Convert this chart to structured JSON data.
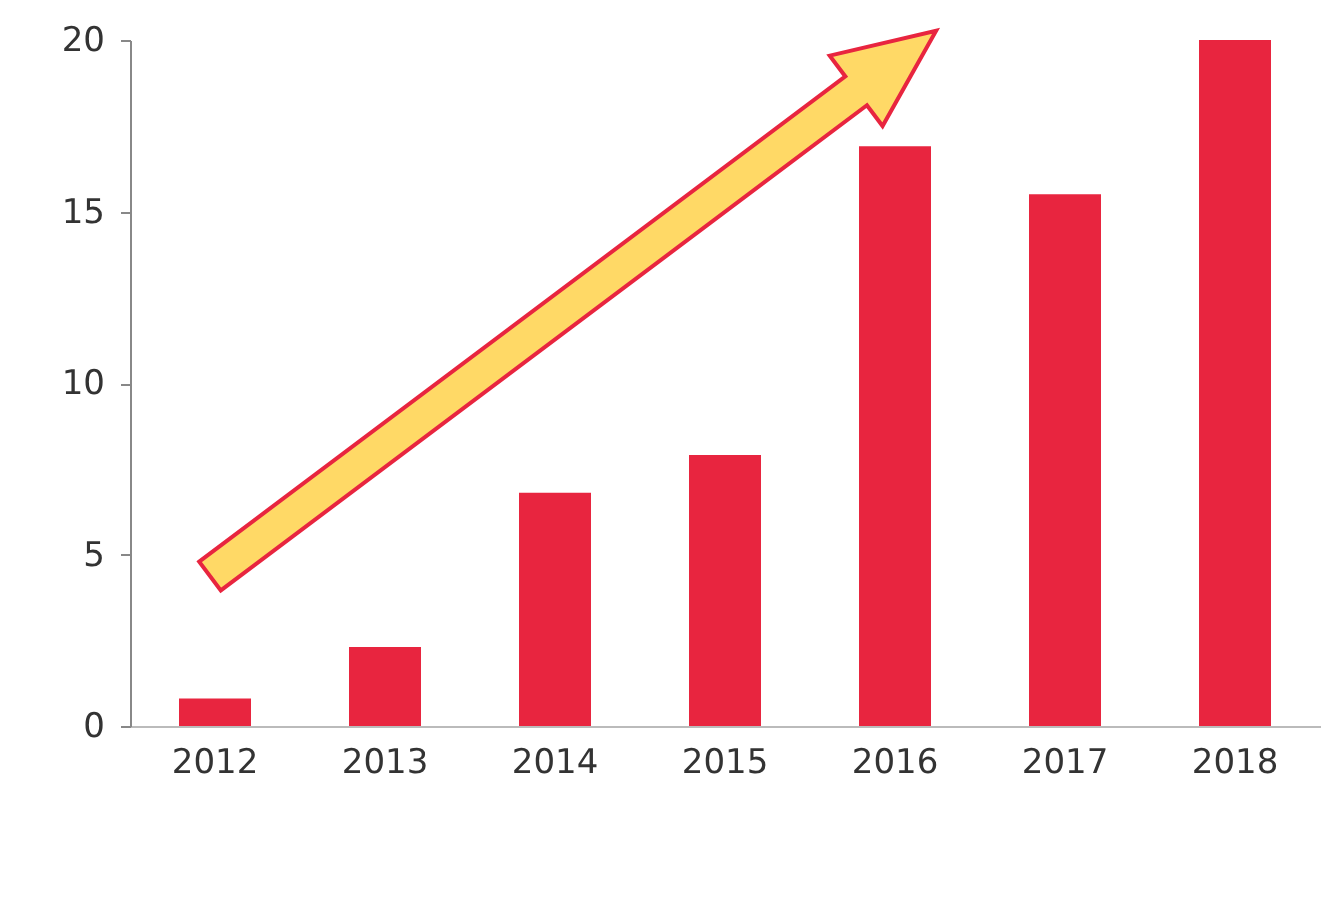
{
  "chart_data": {
    "type": "bar",
    "categories": [
      "2012",
      "2013",
      "2014",
      "2015",
      "2016",
      "2017",
      "2018"
    ],
    "series": [
      {
        "color": "#e8253f",
        "values": [
          0.8,
          2.3,
          6.8,
          7.9,
          16.9,
          15.5,
          20
        ]
      }
    ],
    "ylim": [
      0,
      20
    ],
    "yticks": [
      0,
      5,
      10,
      15,
      20
    ],
    "grid": false,
    "legend": false
  }
}
